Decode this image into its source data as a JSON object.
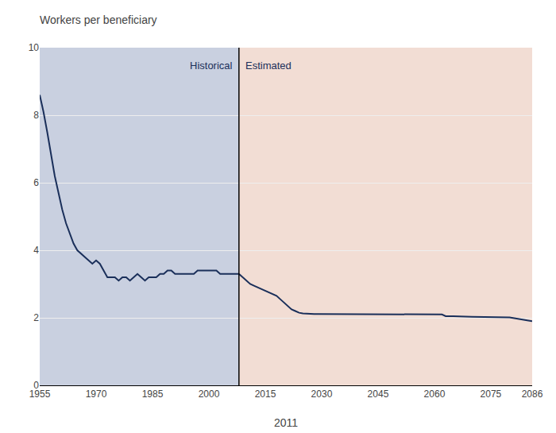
{
  "chart_data": {
    "type": "line",
    "title": "Workers per beneficiary",
    "xlabel": "2011",
    "xlim": [
      1955,
      2086
    ],
    "xticks": [
      1955,
      1970,
      1985,
      2000,
      2015,
      2030,
      2045,
      2060,
      2075,
      2086
    ],
    "ylim": [
      0,
      10
    ],
    "yticks": [
      0,
      2,
      4,
      6,
      8,
      10
    ],
    "grid": true,
    "regions": [
      {
        "name": "Historical",
        "from": 1955,
        "to": 2008,
        "color": "#c9d0e0"
      },
      {
        "name": "Estimated",
        "from": 2008,
        "to": 2086,
        "color": "#f2ddd4"
      }
    ],
    "series": [
      {
        "color": "#1a2f5a",
        "x": [
          1955,
          1956,
          1957,
          1958,
          1959,
          1960,
          1961,
          1962,
          1963,
          1964,
          1965,
          1966,
          1967,
          1968,
          1969,
          1970,
          1971,
          1972,
          1973,
          1974,
          1975,
          1976,
          1977,
          1978,
          1979,
          1980,
          1981,
          1982,
          1983,
          1984,
          1985,
          1986,
          1987,
          1988,
          1989,
          1990,
          1991,
          1992,
          1993,
          1994,
          1995,
          1996,
          1997,
          1998,
          1999,
          2000,
          2001,
          2002,
          2003,
          2004,
          2005,
          2006,
          2007,
          2008
        ],
        "values": [
          8.6,
          8.1,
          7.5,
          6.8,
          6.2,
          5.7,
          5.2,
          4.8,
          4.5,
          4.2,
          4.0,
          3.9,
          3.8,
          3.7,
          3.6,
          3.7,
          3.6,
          3.4,
          3.2,
          3.2,
          3.2,
          3.1,
          3.2,
          3.2,
          3.1,
          3.2,
          3.3,
          3.2,
          3.1,
          3.2,
          3.2,
          3.2,
          3.3,
          3.3,
          3.4,
          3.4,
          3.3,
          3.3,
          3.3,
          3.3,
          3.3,
          3.3,
          3.4,
          3.4,
          3.4,
          3.4,
          3.4,
          3.4,
          3.3,
          3.3,
          3.3,
          3.3,
          3.3,
          3.3
        ]
      },
      {
        "color": "#1a2f5a",
        "x": [
          2008,
          2009,
          2010,
          2011,
          2012,
          2013,
          2014,
          2015,
          2016,
          2017,
          2018,
          2019,
          2020,
          2021,
          2022,
          2023,
          2024,
          2025,
          2026,
          2027,
          2028,
          2029,
          2030,
          2031,
          2032,
          2033,
          2034,
          2035,
          2036,
          2037,
          2038,
          2039,
          2040,
          2041,
          2042,
          2043,
          2044,
          2045,
          2046,
          2047,
          2048,
          2049,
          2050,
          2055,
          2060,
          2062,
          2063,
          2064,
          2065,
          2070,
          2075,
          2080,
          2085,
          2086
        ],
        "values": [
          3.3,
          3.2,
          3.1,
          3.0,
          2.95,
          2.9,
          2.85,
          2.8,
          2.75,
          2.7,
          2.65,
          2.55,
          2.45,
          2.35,
          2.25,
          2.2,
          2.15,
          2.13,
          2.12,
          2.11,
          2.11,
          2.11,
          2.11,
          2.11,
          2.11,
          2.1,
          2.1,
          2.1,
          2.1,
          2.1,
          2.1,
          2.1,
          2.1,
          2.1,
          2.1,
          2.1,
          2.1,
          2.1,
          2.1,
          2.1,
          2.1,
          2.1,
          2.1,
          2.1,
          2.1,
          2.1,
          2.05,
          2.05,
          2.05,
          2.03,
          2.02,
          2.01,
          1.92,
          1.9
        ]
      }
    ]
  }
}
